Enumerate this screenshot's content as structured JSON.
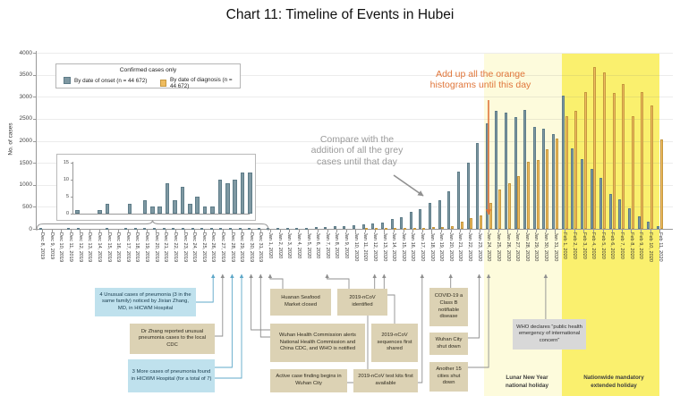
{
  "title": "Chart 11: Timeline of Events in Hubei",
  "y_axis": {
    "label": "No. of cases",
    "ticks": [
      0,
      500,
      1000,
      1500,
      2000,
      2500,
      3000,
      3500,
      4000
    ]
  },
  "legend": {
    "title": "Confirmed cases only",
    "onset_label": "By date of onset (n = 44 672)",
    "diagnosis_label": "By date of diagnosis (n = 44 672)",
    "onset_color": "#7e98a2",
    "diagnosis_color": "#efbc5f"
  },
  "chart_data": {
    "type": "bar",
    "title": "Chart 11: Timeline of Events in Hubei",
    "ylabel": "No. of cases",
    "ylim": [
      0,
      4000
    ],
    "grid": true,
    "categories": [
      "Dec 8, 2019",
      "Dec 9, 2019",
      "Dec 10, 2019",
      "Dec 11, 2019",
      "Dec 12, 2019",
      "Dec 13, 2019",
      "Dec 14, 2019",
      "Dec 15, 2019",
      "Dec 16, 2019",
      "Dec 17, 2019",
      "Dec 18, 2019",
      "Dec 19, 2019",
      "Dec 20, 2019",
      "Dec 21, 2019",
      "Dec 22, 2019",
      "Dec 23, 2019",
      "Dec 24, 2019",
      "Dec 25, 2019",
      "Dec 26, 2019",
      "Dec 27, 2019",
      "Dec 28, 2019",
      "Dec 29, 2019",
      "Dec 30, 2019",
      "Dec 31, 2019",
      "Jan 1, 2020",
      "Jan 2, 2020",
      "Jan 3, 2020",
      "Jan 4, 2020",
      "Jan 5, 2020",
      "Jan 6, 2020",
      "Jan 7, 2020",
      "Jan 8, 2020",
      "Jan 9, 2020",
      "Jan 10, 2020",
      "Jan 11, 2020",
      "Jan 12, 2020",
      "Jan 13, 2020",
      "Jan 14, 2020",
      "Jan 15, 2020",
      "Jan 16, 2020",
      "Jan 17, 2020",
      "Jan 18, 2020",
      "Jan 19, 2020",
      "Jan 20, 2020",
      "Jan 21, 2020",
      "Jan 22, 2020",
      "Jan 23, 2020",
      "Jan 24, 2020",
      "Jan 25, 2020",
      "Jan 26, 2020",
      "Jan 27, 2020",
      "Jan 28, 2020",
      "Jan 29, 2020",
      "Jan 30, 2020",
      "Jan 31, 2020",
      "Feb 1, 2020",
      "Feb 2, 2020",
      "Feb 3, 2020",
      "Feb 4, 2020",
      "Feb 5, 2020",
      "Feb 6, 2020",
      "Feb 7, 2020",
      "Feb 8, 2020",
      "Feb 9, 2020",
      "Feb 10, 2020",
      "Feb 11, 2020"
    ],
    "series": [
      {
        "name": "By date of onset (n = 44 672)",
        "color": "#7e98a2",
        "values": [
          1,
          0,
          0,
          1,
          3,
          0,
          0,
          3,
          0,
          4,
          2,
          2,
          9,
          4,
          8,
          3,
          5,
          2,
          2,
          10,
          9,
          10,
          12,
          12,
          18,
          15,
          22,
          26,
          30,
          32,
          40,
          55,
          60,
          80,
          95,
          120,
          150,
          220,
          260,
          380,
          440,
          590,
          650,
          850,
          1300,
          1500,
          1950,
          2390,
          2690,
          2630,
          2540,
          2700,
          2320,
          2270,
          2150,
          3030,
          1835,
          1585,
          1365,
          1150,
          790,
          670,
          470,
          290,
          170,
          67
        ]
      },
      {
        "name": "By date of diagnosis (n = 44 672)",
        "color": "#efbc5f",
        "values": [
          0,
          0,
          0,
          0,
          0,
          0,
          0,
          0,
          0,
          0,
          0,
          0,
          0,
          0,
          0,
          0,
          0,
          0,
          0,
          0,
          0,
          0,
          0,
          0,
          0,
          0,
          0,
          0,
          0,
          0,
          0,
          0,
          0,
          0,
          10,
          15,
          10,
          15,
          20,
          25,
          30,
          40,
          50,
          65,
          155,
          235,
          300,
          590,
          895,
          1030,
          1200,
          1520,
          1565,
          1815,
          2050,
          2560,
          2690,
          3110,
          3680,
          3560,
          3080,
          3290,
          2560,
          3110,
          2810,
          2035
        ]
      }
    ],
    "inset": {
      "covers": "Dec 8, 2019 - Dec 31, 2019",
      "yticks": [
        0,
        5,
        10,
        15
      ],
      "ylim": [
        0,
        15
      ]
    }
  },
  "annotations": {
    "grey_note": "Compare with the\naddition of all the grey\ncases until that day",
    "orange_note": "Add up all the orange\nhistograms until this day",
    "grey_color": "#9a9a9a",
    "orange_color": "#e0763b"
  },
  "callouts": [
    {
      "text": "4 Unusual cases of pneumonia (3 in the same family) noticed by Jixian Zhang, MD, in HICWM Hospital",
      "type": "blue",
      "target": "Dec 26, 2019"
    },
    {
      "text": "Dr Zhang reported unusual pneumonia cases to the local CDC",
      "type": "tan",
      "target": "Dec 27, 2019"
    },
    {
      "text": "3 More cases of pneumonia found in HICWM Hospital (for a total of 7)",
      "type": "blue",
      "target": "Dec 28–29, 2019"
    },
    {
      "text": "Huanan Seafood Market closed",
      "type": "tan",
      "target": "Jan 1, 2020"
    },
    {
      "text": "2019-nCoV identified",
      "type": "tan",
      "target": "Jan 7, 2020"
    },
    {
      "text": "Wuhan Health Commission alerts National Health Commission and China CDC, and WHO is notified",
      "type": "tan",
      "target": "Dec 30–31, 2019"
    },
    {
      "text": "2019-nCoV sequences first shared",
      "type": "tan",
      "target": "Jan 13, 2020"
    },
    {
      "text": "Active case finding begins in Wuhan City",
      "type": "tan",
      "target": "Jan 17, 2020"
    },
    {
      "text": "2019-nCoV test kits first available",
      "type": "tan",
      "target": "Jan 12, 2020"
    },
    {
      "text": "COVID-19 a Class B notifiable disease",
      "type": "tan",
      "target": "Jan 20, 2020"
    },
    {
      "text": "Wuhan City shut down",
      "type": "tan",
      "target": "Jan 23, 2020"
    },
    {
      "text": "Another 15 cities shut down",
      "type": "tan",
      "target": "Jan 24, 2020"
    },
    {
      "text": "WHO declares “public health emergency of international concern”",
      "type": "grey",
      "target": "Jan 30, 2020"
    }
  ],
  "holidays": [
    {
      "label": "Lunar New Year\nnational holiday",
      "color": "#fdfbdc"
    },
    {
      "label": "Nationwide mandatory\nextended holiday",
      "color": "#faf06e"
    }
  ]
}
